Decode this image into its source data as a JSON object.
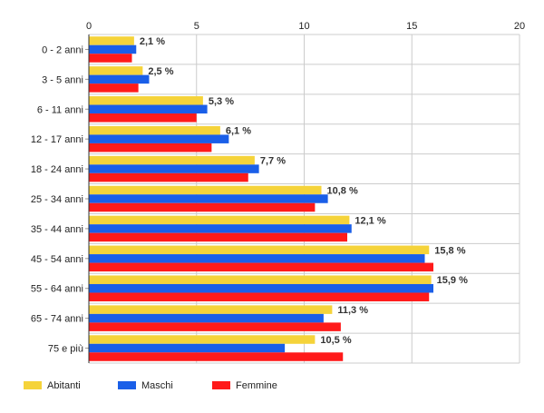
{
  "chart_data": {
    "type": "bar",
    "orientation": "horizontal",
    "categories": [
      "0 - 2 anni",
      "3 - 5 anni",
      "6 - 11 anni",
      "12 - 17 anni",
      "18 - 24 anni",
      "25 - 34 anni",
      "35 - 44 anni",
      "45 - 54 anni",
      "55 - 64 anni",
      "65 - 74 anni",
      "75 e più"
    ],
    "series": [
      {
        "name": "Abitanti",
        "color": "#f5d33a",
        "values": [
          2.1,
          2.5,
          5.3,
          6.1,
          7.7,
          10.8,
          12.1,
          15.8,
          15.9,
          11.3,
          10.5
        ],
        "labels": [
          "2,1 %",
          "2,5 %",
          "5,3 %",
          "6,1 %",
          "7,7 %",
          "10,8 %",
          "12,1 %",
          "15,8 %",
          "15,9 %",
          "11,3 %",
          "10,5 %"
        ]
      },
      {
        "name": "Maschi",
        "color": "#1a5fe8",
        "values": [
          2.2,
          2.8,
          5.5,
          6.5,
          7.9,
          11.1,
          12.2,
          15.6,
          16.0,
          10.9,
          9.1
        ]
      },
      {
        "name": "Femmine",
        "color": "#ff1a1a",
        "values": [
          2.0,
          2.3,
          5.0,
          5.7,
          7.4,
          10.5,
          12.0,
          16.0,
          15.8,
          11.7,
          11.8
        ]
      }
    ],
    "xlim": [
      0,
      20
    ],
    "xticks": [
      "0",
      "5",
      "10",
      "15",
      "20"
    ],
    "tick_values": [
      0,
      5,
      10,
      15,
      20
    ],
    "grid": true,
    "legend_position": "bottom-left",
    "title": "",
    "xlabel": "",
    "ylabel": ""
  }
}
